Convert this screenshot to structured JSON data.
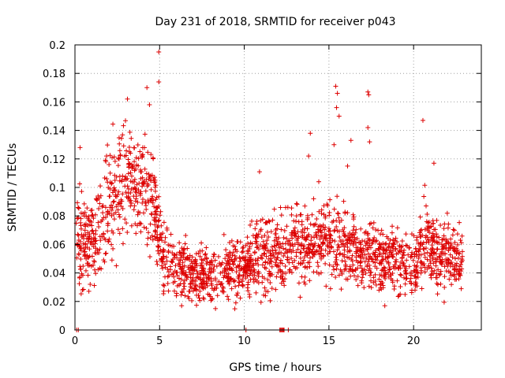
{
  "chart_data": {
    "type": "scatter",
    "title": "Day 231 of 2018, SRMTID for receiver p043",
    "xlabel": "GPS time / hours",
    "ylabel": "SRMTID / TECUs",
    "xlim": [
      0,
      24
    ],
    "ylim": [
      0,
      0.2
    ],
    "x_ticks": [
      0,
      5,
      10,
      15,
      20
    ],
    "x_tick_labels": [
      "0",
      "5",
      "10",
      "15",
      "20"
    ],
    "y_ticks": [
      0,
      0.02,
      0.04,
      0.06,
      0.08,
      0.1,
      0.12,
      0.14,
      0.16,
      0.18,
      0.2
    ],
    "y_tick_labels": [
      "0",
      "0.02",
      "0.04",
      "0.06",
      "0.08",
      "0.1",
      "0.12",
      "0.14",
      "0.16",
      "0.18",
      "0.2"
    ],
    "grid": true,
    "marker": "+",
    "color": "#dd0000",
    "series": [
      {
        "name": "SRMTID p043",
        "x_range": [
          0.05,
          22.9
        ],
        "profile": [
          {
            "x": 0.0,
            "center": 0.065,
            "spread": 0.02
          },
          {
            "x": 1.0,
            "center": 0.06,
            "spread": 0.018
          },
          {
            "x": 2.0,
            "center": 0.085,
            "spread": 0.022
          },
          {
            "x": 3.0,
            "center": 0.11,
            "spread": 0.025
          },
          {
            "x": 4.0,
            "center": 0.1,
            "spread": 0.025
          },
          {
            "x": 4.6,
            "center": 0.09,
            "spread": 0.02
          },
          {
            "x": 5.0,
            "center": 0.06,
            "spread": 0.015
          },
          {
            "x": 6.0,
            "center": 0.045,
            "spread": 0.012
          },
          {
            "x": 7.0,
            "center": 0.04,
            "spread": 0.01
          },
          {
            "x": 8.0,
            "center": 0.038,
            "spread": 0.01
          },
          {
            "x": 9.0,
            "center": 0.04,
            "spread": 0.012
          },
          {
            "x": 10.0,
            "center": 0.045,
            "spread": 0.012
          },
          {
            "x": 11.0,
            "center": 0.055,
            "spread": 0.015
          },
          {
            "x": 12.0,
            "center": 0.05,
            "spread": 0.015
          },
          {
            "x": 13.0,
            "center": 0.06,
            "spread": 0.015
          },
          {
            "x": 14.0,
            "center": 0.062,
            "spread": 0.015
          },
          {
            "x": 15.0,
            "center": 0.065,
            "spread": 0.015
          },
          {
            "x": 16.0,
            "center": 0.058,
            "spread": 0.015
          },
          {
            "x": 17.0,
            "center": 0.055,
            "spread": 0.015
          },
          {
            "x": 18.0,
            "center": 0.052,
            "spread": 0.014
          },
          {
            "x": 19.0,
            "center": 0.048,
            "spread": 0.013
          },
          {
            "x": 20.0,
            "center": 0.045,
            "spread": 0.012
          },
          {
            "x": 20.7,
            "center": 0.065,
            "spread": 0.015
          },
          {
            "x": 21.5,
            "center": 0.05,
            "spread": 0.013
          },
          {
            "x": 22.9,
            "center": 0.05,
            "spread": 0.013
          }
        ],
        "notable_points": [
          {
            "x": 4.95,
            "y": 0.195
          },
          {
            "x": 4.95,
            "y": 0.174
          },
          {
            "x": 4.25,
            "y": 0.17
          },
          {
            "x": 4.4,
            "y": 0.158
          },
          {
            "x": 3.1,
            "y": 0.162
          },
          {
            "x": 15.4,
            "y": 0.171
          },
          {
            "x": 15.5,
            "y": 0.166
          },
          {
            "x": 15.45,
            "y": 0.156
          },
          {
            "x": 15.6,
            "y": 0.15
          },
          {
            "x": 17.3,
            "y": 0.167
          },
          {
            "x": 17.35,
            "y": 0.165
          },
          {
            "x": 17.3,
            "y": 0.142
          },
          {
            "x": 17.4,
            "y": 0.132
          },
          {
            "x": 20.55,
            "y": 0.147
          },
          {
            "x": 13.9,
            "y": 0.138
          },
          {
            "x": 13.8,
            "y": 0.122
          },
          {
            "x": 15.3,
            "y": 0.13
          },
          {
            "x": 16.1,
            "y": 0.115
          },
          {
            "x": 16.3,
            "y": 0.133
          },
          {
            "x": 10.9,
            "y": 0.111
          },
          {
            "x": 21.2,
            "y": 0.117
          },
          {
            "x": 0.3,
            "y": 0.128
          },
          {
            "x": 14.4,
            "y": 0.104
          },
          {
            "x": 6.3,
            "y": 0.017
          },
          {
            "x": 8.3,
            "y": 0.015
          },
          {
            "x": 9.5,
            "y": 0.019
          },
          {
            "x": 13.3,
            "y": 0.023
          },
          {
            "x": 18.3,
            "y": 0.017
          }
        ],
        "zero_points": [
          0.1,
          0.2,
          10.1,
          12.1,
          12.15,
          12.2,
          12.25,
          12.3,
          12.35,
          12.6
        ]
      }
    ]
  }
}
